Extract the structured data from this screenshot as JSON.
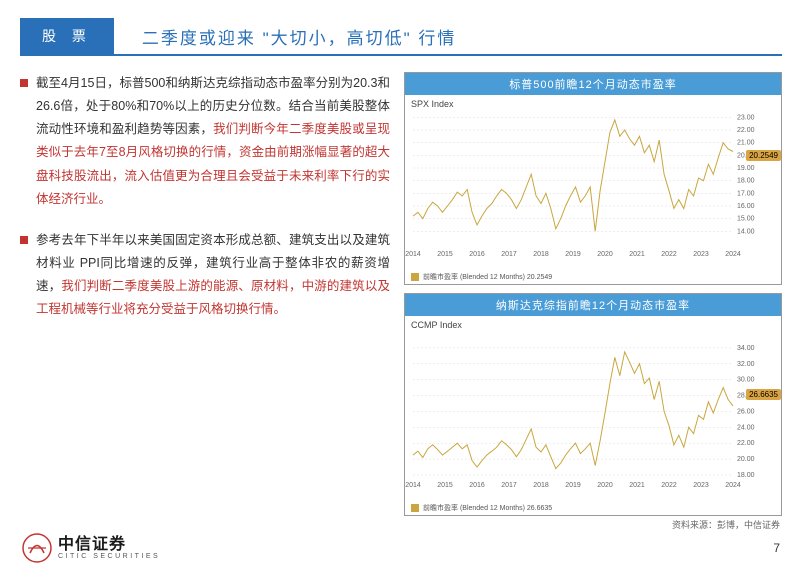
{
  "header": {
    "tag": "股 票",
    "title": "二季度或迎来 \"大切小，高切低\" 行情"
  },
  "bullets": [
    {
      "plain1": "截至4月15日，标普500和纳斯达克综指动态市盈率分别为20.3和26.6倍，处于80%和70%以上的历史分位数。结合当前美股整体流动性环境和盈利趋势等因素，",
      "hl": "我们判断今年二季度美股或呈现类似于去年7至8月风格切换的行情，资金由前期涨幅显著的超大盘科技股流出，流入估值更为合理且会受益于未来利率下行的实体经济行业。",
      "plain2": ""
    },
    {
      "plain1": "参考去年下半年以来美国固定资本形成总额、建筑支出以及建筑材料业 PPI同比增速的反弹，建筑行业高于整体非农的薪资增速，",
      "hl": "我们判断二季度美股上游的能源、原材料，中游的建筑以及工程机械等行业将充分受益于风格切换行情。",
      "plain2": ""
    }
  ],
  "charts": [
    {
      "title": "标普500前瞻12个月动态市盈率",
      "index_label": "SPX Index",
      "legend": "前瞻市盈率 (Blended 12 Months) 20.2549",
      "value_tag": {
        "text": "20.2549",
        "y_ratio": 0.34
      },
      "height": 175,
      "ylim": [
        13,
        23.5
      ],
      "yticks": [
        14,
        15,
        16,
        17,
        18,
        19,
        20,
        21,
        22,
        23
      ],
      "xlabels": [
        "2014",
        "2015",
        "2016",
        "2017",
        "2018",
        "2019",
        "2020",
        "2021",
        "2022",
        "2023",
        "2024"
      ],
      "series_color": "#c9a63f",
      "grid_color": "#dddddd",
      "bg": "#ffffff",
      "data": [
        15.2,
        15.5,
        15.0,
        15.8,
        16.3,
        16.0,
        15.5,
        16.0,
        16.5,
        17.1,
        16.8,
        17.3,
        15.5,
        14.5,
        15.2,
        15.8,
        16.2,
        16.8,
        17.3,
        17.0,
        16.5,
        15.8,
        16.5,
        17.5,
        18.5,
        16.8,
        16.2,
        17.0,
        15.8,
        14.2,
        15.0,
        16.0,
        16.8,
        17.5,
        16.3,
        16.8,
        17.5,
        14.0,
        17.2,
        19.5,
        21.8,
        22.8,
        21.5,
        22.0,
        21.3,
        20.8,
        21.5,
        20.2,
        20.8,
        19.5,
        21.2,
        18.5,
        17.2,
        15.8,
        16.5,
        15.8,
        17.3,
        16.8,
        18.2,
        18.0,
        19.3,
        18.5,
        19.8,
        21.0,
        20.5,
        20.3
      ]
    },
    {
      "title": "纳斯达克综指前瞻12个月动态市盈率",
      "index_label": "CCMP Index",
      "legend": "前瞻市盈率 (Blended 12 Months) 26.6635",
      "value_tag": {
        "text": "26.6635",
        "y_ratio": 0.44
      },
      "height": 185,
      "ylim": [
        18,
        36
      ],
      "yticks": [
        18,
        20,
        22,
        24,
        26,
        28,
        30,
        32,
        34
      ],
      "xlabels": [
        "2014",
        "2015",
        "2016",
        "2017",
        "2018",
        "2019",
        "2020",
        "2021",
        "2022",
        "2023",
        "2024"
      ],
      "series_color": "#c9a63f",
      "grid_color": "#dddddd",
      "bg": "#ffffff",
      "data": [
        20.5,
        21.0,
        20.2,
        21.3,
        21.8,
        21.2,
        20.5,
        21.0,
        21.5,
        22.0,
        21.3,
        21.8,
        19.8,
        19.0,
        19.8,
        20.5,
        21.0,
        21.5,
        22.3,
        21.8,
        21.2,
        20.3,
        21.2,
        22.5,
        23.8,
        21.5,
        20.9,
        21.8,
        20.3,
        18.8,
        19.5,
        20.5,
        21.3,
        22.0,
        20.7,
        21.3,
        22.0,
        19.2,
        22.3,
        25.8,
        29.5,
        32.8,
        30.5,
        33.5,
        32.2,
        30.8,
        32.0,
        29.5,
        30.2,
        27.5,
        29.8,
        26.0,
        24.2,
        21.8,
        23.0,
        21.5,
        24.0,
        23.2,
        25.5,
        25.0,
        27.2,
        25.8,
        27.5,
        29.0,
        27.5,
        26.7
      ]
    }
  ],
  "source": "资料来源：彭博，中信证券",
  "footer": {
    "logo_cn": "中信证券",
    "logo_en": "CITIC SECURITIES",
    "page": "7"
  },
  "colors": {
    "brand": "#2a70b8",
    "accent": "#c23531",
    "chart_header": "#4a9cd6"
  }
}
